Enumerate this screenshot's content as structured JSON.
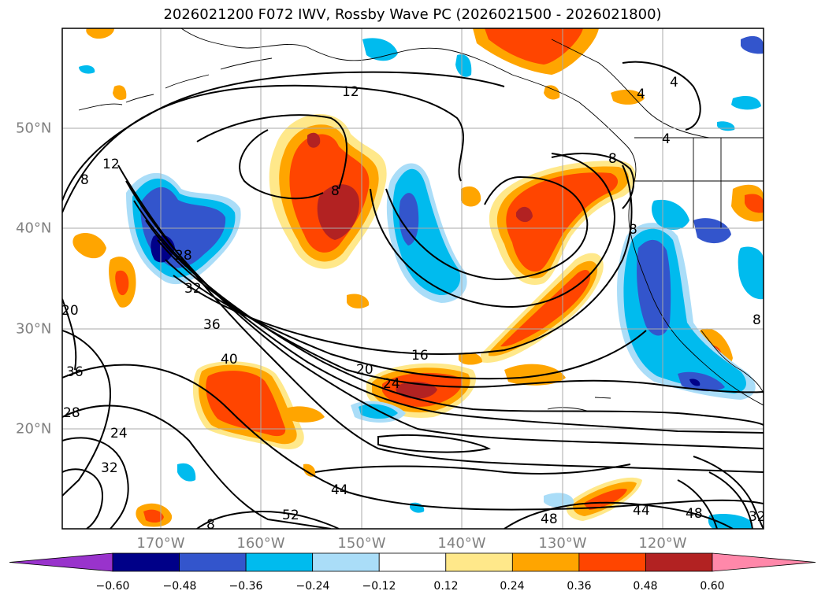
{
  "title": "2026021200 F072 IWV, Rossby Wave PC (2026021500 - 2026021800)",
  "axes": {
    "longitude_labels": [
      "170°W",
      "160°W",
      "150°W",
      "140°W",
      "130°W",
      "120°W"
    ],
    "latitude_labels": [
      "50°N",
      "40°N",
      "30°N",
      "20°N"
    ]
  },
  "colorbar": {
    "labels": [
      "−0.60",
      "−0.48",
      "−0.36",
      "−0.24",
      "−0.12",
      "0.12",
      "0.24",
      "0.36",
      "0.48",
      "0.60"
    ],
    "colors": [
      "#9933cc",
      "#000088",
      "#3355cc",
      "#00bbee",
      "#aaddf8",
      "#ffffff",
      "#ffe88a",
      "#ffa500",
      "#ff4500",
      "#b22222",
      "#ff88aa"
    ]
  },
  "contour_labels": [
    "4",
    "4",
    "4",
    "8",
    "8",
    "8",
    "8",
    "8",
    "12",
    "12",
    "16",
    "20",
    "20",
    "24",
    "24",
    "28",
    "28",
    "32",
    "32",
    "32",
    "36",
    "36",
    "40",
    "44",
    "44",
    "48",
    "48",
    "52",
    "8"
  ],
  "shading_colors": {
    "orange_red": "#ff4500",
    "orange": "#ffa500",
    "yellow": "#ffe88a",
    "dark_red": "#b22222",
    "light_blue": "#aaddf8",
    "cyan": "#00bbee",
    "blue": "#3355cc",
    "navy": "#000088"
  }
}
